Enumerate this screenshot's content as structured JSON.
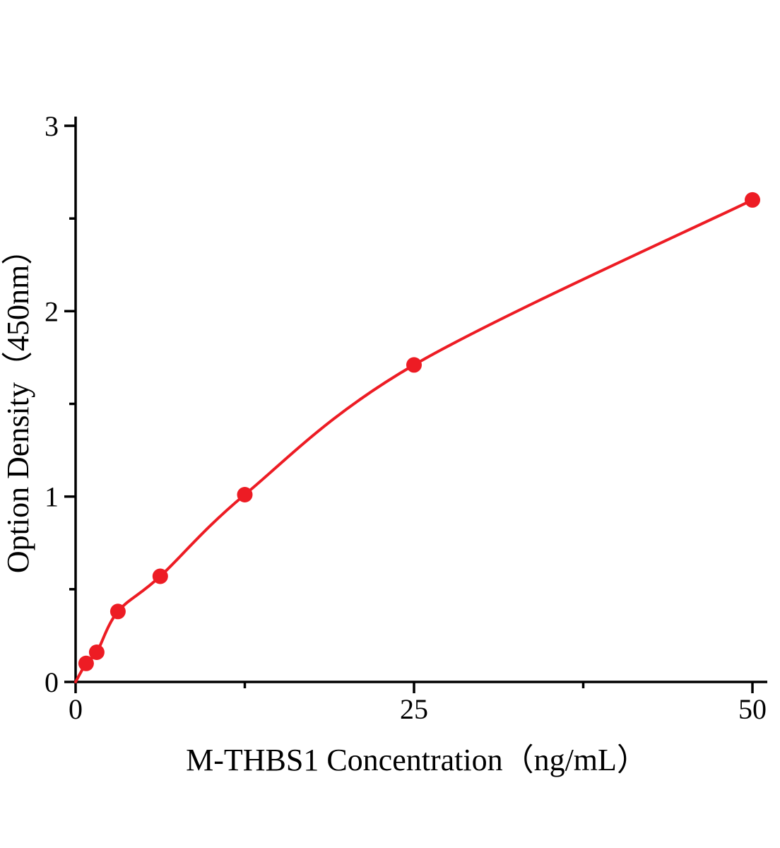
{
  "chart_data": {
    "type": "line",
    "title": "",
    "xlabel": "M-THBS1 Concentration（ng/mL）",
    "ylabel": "Option Density（450nm）",
    "x": [
      0.78,
      1.56,
      3.125,
      6.25,
      12.5,
      25,
      50
    ],
    "y": [
      0.1,
      0.16,
      0.38,
      0.57,
      1.01,
      1.71,
      2.6
    ],
    "curve_start": [
      0,
      0
    ],
    "xlim": [
      0,
      50
    ],
    "ylim": [
      0,
      3
    ],
    "x_major_ticks": [
      0,
      25,
      50
    ],
    "x_minor_ticks": [
      12.5,
      37.5
    ],
    "y_major_ticks": [
      0,
      1,
      2,
      3
    ],
    "y_minor_ticks": [
      0.5,
      1.5,
      2.5
    ],
    "line_color": "#ed1c24",
    "marker_color": "#ed1c24",
    "axis_color": "#000000",
    "grid": false,
    "legend": null
  }
}
